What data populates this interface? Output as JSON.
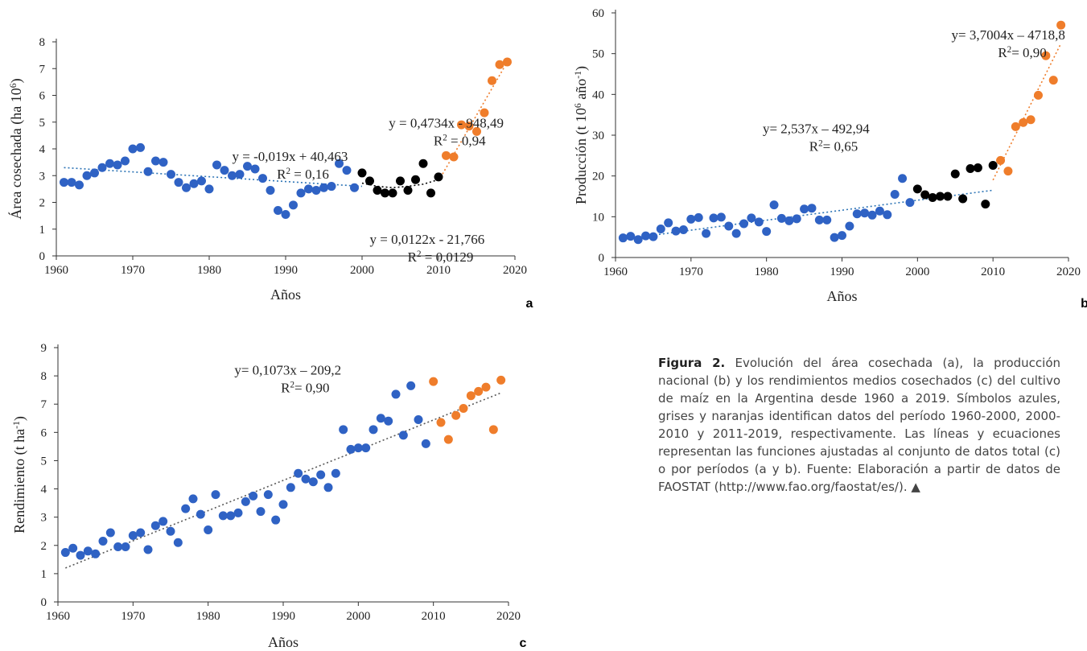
{
  "colors": {
    "blue": "#2f62c4",
    "black": "#000000",
    "orange": "#ef7d2b",
    "trend_blue": "#2e75b6",
    "trend_black": "#000000",
    "trend_orange": "#ef7d2b",
    "trend_gray": "#595959"
  },
  "caption": {
    "title": "Figura 2.",
    "text": "Evolución del área cosechada (a), la producción nacional (b) y los rendimientos medios cosechados (c) del cultivo de maíz en la Argentina desde 1960 a 2019. Símbolos azules, grises y naranjas identifican datos del período 1960-2000, 2000-2010 y 2011-2019, respectivamente. Las líneas y ecuaciones representan las funciones ajustadas al conjunto de datos total (c) o por períodos (a y b). Fuente: Elaboración a partir de datos de FAOSTAT (http://www.fao.org/faostat/es/).",
    "end_mark": "▲"
  },
  "chart_data": [
    {
      "id": "a",
      "type": "scatter",
      "panel_label": "a",
      "xlabel": "Años",
      "ylabel": "Área cosechada (ha 10⁶)",
      "xlim": [
        1960,
        2020
      ],
      "ylim": [
        0,
        8
      ],
      "xticks": [
        1960,
        1970,
        1980,
        1990,
        2000,
        2010,
        2020
      ],
      "yticks": [
        0,
        1,
        2,
        3,
        4,
        5,
        6,
        7,
        8
      ],
      "grid": false,
      "legend": "none",
      "series": [
        {
          "color": "blue",
          "x": [
            1961,
            1962,
            1963,
            1964,
            1965,
            1966,
            1967,
            1968,
            1969,
            1970,
            1971,
            1972,
            1973,
            1974,
            1975,
            1976,
            1977,
            1978,
            1979,
            1980,
            1981,
            1982,
            1983,
            1984,
            1985,
            1986,
            1987,
            1988,
            1989,
            1990,
            1991,
            1992,
            1993,
            1994,
            1995,
            1996,
            1997,
            1998,
            1999
          ],
          "y": [
            2.75,
            2.75,
            2.65,
            3.0,
            3.1,
            3.3,
            3.45,
            3.4,
            3.55,
            4.0,
            4.05,
            3.15,
            3.55,
            3.5,
            3.05,
            2.75,
            2.55,
            2.7,
            2.8,
            2.5,
            3.4,
            3.2,
            3.0,
            3.05,
            3.35,
            3.25,
            2.9,
            2.45,
            1.7,
            1.55,
            1.9,
            2.35,
            2.5,
            2.45,
            2.55,
            2.6,
            3.45,
            3.2,
            2.55
          ]
        },
        {
          "color": "black",
          "x": [
            2000,
            2001,
            2002,
            2003,
            2004,
            2005,
            2006,
            2007,
            2008,
            2009,
            2010
          ],
          "y": [
            3.1,
            2.8,
            2.45,
            2.35,
            2.35,
            2.8,
            2.45,
            2.85,
            3.45,
            2.35,
            2.95
          ]
        },
        {
          "color": "orange",
          "x": [
            2011,
            2012,
            2013,
            2014,
            2015,
            2016,
            2017,
            2018,
            2019
          ],
          "y": [
            3.75,
            3.7,
            4.9,
            4.85,
            4.65,
            5.35,
            6.55,
            7.15,
            7.25
          ]
        }
      ],
      "trendlines": [
        {
          "color": "trend_blue",
          "kind": "linear",
          "x": [
            1961,
            2000
          ],
          "y": [
            3.3,
            2.6
          ]
        },
        {
          "color": "trend_black",
          "kind": "poly",
          "x": [
            2000,
            2002,
            2004,
            2006,
            2008,
            2010
          ],
          "y": [
            2.72,
            2.6,
            2.55,
            2.6,
            2.68,
            2.85
          ]
        },
        {
          "color": "trend_orange",
          "kind": "linear",
          "x": [
            2010,
            2019
          ],
          "y": [
            2.8,
            7.25
          ]
        }
      ],
      "annotations": [
        {
          "lines": [
            "y = -0,019x + 40,463",
            "R² = 0,16"
          ],
          "at": [
            1983,
            3.55
          ]
        },
        {
          "lines": [
            "y = 0,4734x  - 948,49",
            "R² = 0,94"
          ],
          "at": [
            2003.5,
            4.8
          ]
        },
        {
          "lines": [
            "y = 0,0122x  - 21,766",
            "R² = 0,0129"
          ],
          "at": [
            2001,
            0.45
          ]
        }
      ]
    },
    {
      "id": "b",
      "type": "scatter",
      "panel_label": "b",
      "xlabel": "Años",
      "ylabel": "Producción (t 10⁶ año⁻¹)",
      "xlim": [
        1960,
        2020
      ],
      "ylim": [
        0,
        60
      ],
      "xticks": [
        1960,
        1970,
        1980,
        1990,
        2000,
        2010,
        2020
      ],
      "yticks": [
        0,
        10,
        20,
        30,
        40,
        50,
        60
      ],
      "grid": false,
      "legend": "none",
      "series": [
        {
          "color": "blue",
          "x": [
            1961,
            1962,
            1963,
            1964,
            1965,
            1966,
            1967,
            1968,
            1969,
            1970,
            1971,
            1972,
            1973,
            1974,
            1975,
            1976,
            1977,
            1978,
            1979,
            1980,
            1981,
            1982,
            1983,
            1984,
            1985,
            1986,
            1987,
            1988,
            1989,
            1990,
            1991,
            1992,
            1993,
            1994,
            1995,
            1996,
            1997,
            1998,
            1999
          ],
          "y": [
            4.8,
            5.2,
            4.4,
            5.3,
            5.1,
            7.0,
            8.5,
            6.5,
            6.8,
            9.4,
            9.8,
            5.9,
            9.7,
            9.9,
            7.7,
            5.9,
            8.3,
            9.7,
            8.7,
            6.4,
            12.9,
            9.6,
            9.0,
            9.5,
            11.9,
            12.1,
            9.2,
            9.2,
            4.9,
            5.4,
            7.7,
            10.7,
            10.9,
            10.4,
            11.4,
            10.5,
            15.5,
            19.4,
            13.5
          ]
        },
        {
          "color": "black",
          "x": [
            2000,
            2001,
            2002,
            2003,
            2004,
            2005,
            2006,
            2007,
            2008,
            2009,
            2010
          ],
          "y": [
            16.8,
            15.4,
            14.7,
            15.0,
            15.0,
            20.5,
            14.4,
            21.8,
            22.0,
            13.1,
            22.6
          ]
        },
        {
          "color": "orange",
          "x": [
            2011,
            2012,
            2013,
            2014,
            2015,
            2016,
            2017,
            2018,
            2019
          ],
          "y": [
            23.8,
            21.2,
            32.1,
            33.1,
            33.8,
            39.8,
            49.5,
            43.5,
            57.0
          ]
        }
      ],
      "trendlines": [
        {
          "color": "trend_blue",
          "kind": "linear",
          "x": [
            1961,
            2010
          ],
          "y": [
            4.5,
            16.5
          ]
        },
        {
          "color": "trend_orange",
          "kind": "linear",
          "x": [
            2010,
            2019
          ],
          "y": [
            19.0,
            52.5
          ]
        }
      ],
      "annotations": [
        {
          "lines": [
            "y= 2,537x – 492,94",
            "R²= 0,65"
          ],
          "at": [
            1979.5,
            30.5
          ]
        },
        {
          "lines": [
            "y= 3,7004x – 4718,8",
            "R²= 0,90"
          ],
          "at": [
            2004.5,
            53.5
          ]
        }
      ]
    },
    {
      "id": "c",
      "type": "scatter",
      "panel_label": "c",
      "xlabel": "Años",
      "ylabel": "Rendimiento  (t ha⁻¹)",
      "xlim": [
        1960,
        2020
      ],
      "ylim": [
        0,
        9
      ],
      "xticks": [
        1960,
        1970,
        1980,
        1990,
        2000,
        2010,
        2020
      ],
      "yticks": [
        0,
        1,
        2,
        3,
        4,
        5,
        6,
        7,
        8,
        9
      ],
      "grid": false,
      "legend": "none",
      "series": [
        {
          "color": "blue",
          "x": [
            1961,
            1962,
            1963,
            1964,
            1965,
            1966,
            1967,
            1968,
            1969,
            1970,
            1971,
            1972,
            1973,
            1974,
            1975,
            1976,
            1977,
            1978,
            1979,
            1980,
            1981,
            1982,
            1983,
            1984,
            1985,
            1986,
            1987,
            1988,
            1989,
            1990,
            1991,
            1992,
            1993,
            1994,
            1995,
            1996,
            1997,
            1998,
            1999,
            2000,
            2001,
            2002,
            2003,
            2004,
            2005,
            2006,
            2007,
            2008,
            2009
          ],
          "y": [
            1.75,
            1.9,
            1.65,
            1.8,
            1.7,
            2.15,
            2.45,
            1.95,
            1.95,
            2.35,
            2.45,
            1.85,
            2.7,
            2.85,
            2.5,
            2.1,
            3.3,
            3.65,
            3.1,
            2.55,
            3.8,
            3.05,
            3.05,
            3.15,
            3.55,
            3.75,
            3.2,
            3.8,
            2.9,
            3.45,
            4.05,
            4.55,
            4.35,
            4.25,
            4.5,
            4.05,
            4.55,
            6.1,
            5.4,
            5.45,
            5.45,
            6.1,
            6.5,
            6.4,
            7.35,
            5.9,
            7.65,
            6.45,
            5.6
          ]
        },
        {
          "color": "orange",
          "x": [
            2010,
            2011,
            2012,
            2013,
            2014,
            2015,
            2016,
            2017,
            2018,
            2019
          ],
          "y": [
            7.8,
            6.35,
            5.75,
            6.6,
            6.85,
            7.3,
            7.45,
            7.6,
            6.1,
            7.85
          ]
        }
      ],
      "trendlines": [
        {
          "color": "trend_gray",
          "kind": "linear",
          "x": [
            1961,
            2019
          ],
          "y": [
            1.2,
            7.4
          ]
        }
      ],
      "annotations": [
        {
          "lines": [
            "y= 0,1073x – 209,2",
            "R²= 0,90"
          ],
          "at": [
            1983.5,
            8.05
          ]
        }
      ]
    }
  ]
}
